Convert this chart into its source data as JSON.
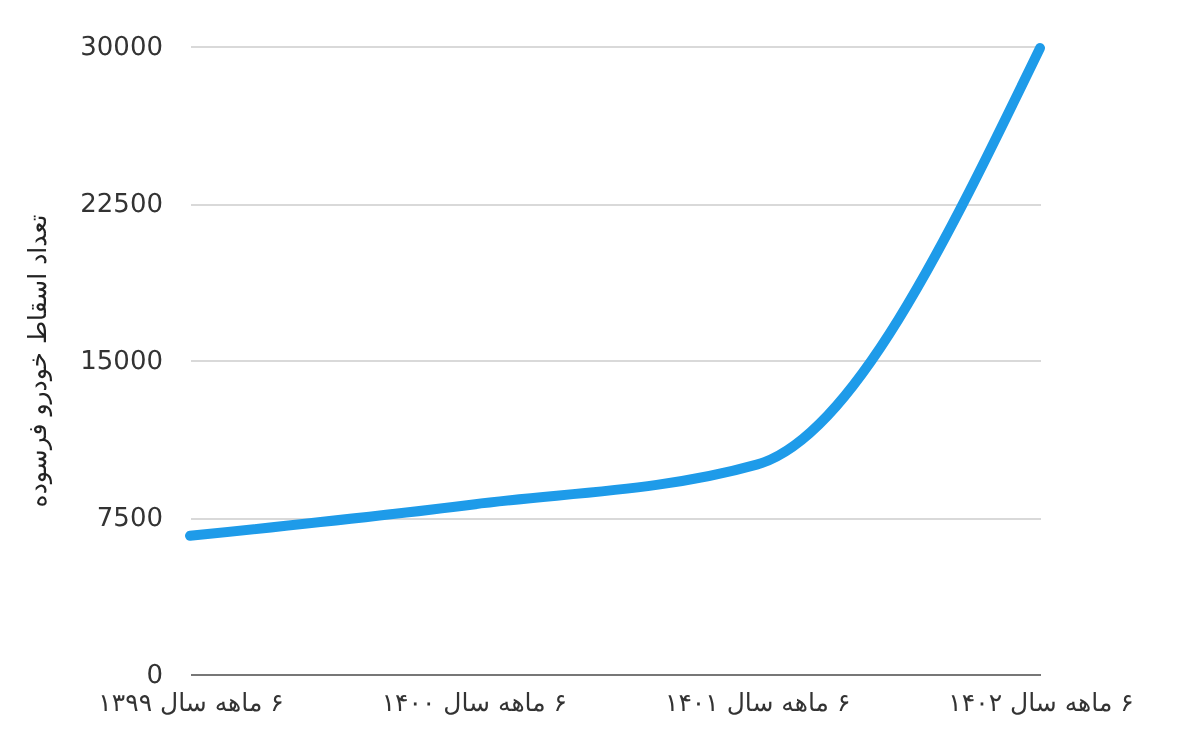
{
  "chart_data": {
    "type": "line",
    "ylabel": "تعداد اسقاط خودرو فرسوده",
    "categories": [
      "۶ ماهه سال ۱۳۹۹",
      "۶ ماهه سال ۱۴۰۰",
      "۶ ماهه سال ۱۴۰۱",
      "۶ ماهه سال ۱۴۰۲"
    ],
    "series": [
      {
        "color": "#1e9be9",
        "values": [
          6600,
          8100,
          10000,
          29900
        ]
      }
    ],
    "ylim": [
      0,
      30000
    ],
    "yticks": [
      0,
      7500,
      15000,
      22500,
      30000
    ],
    "grid": "y",
    "line_style": "solid",
    "marker": "none"
  }
}
